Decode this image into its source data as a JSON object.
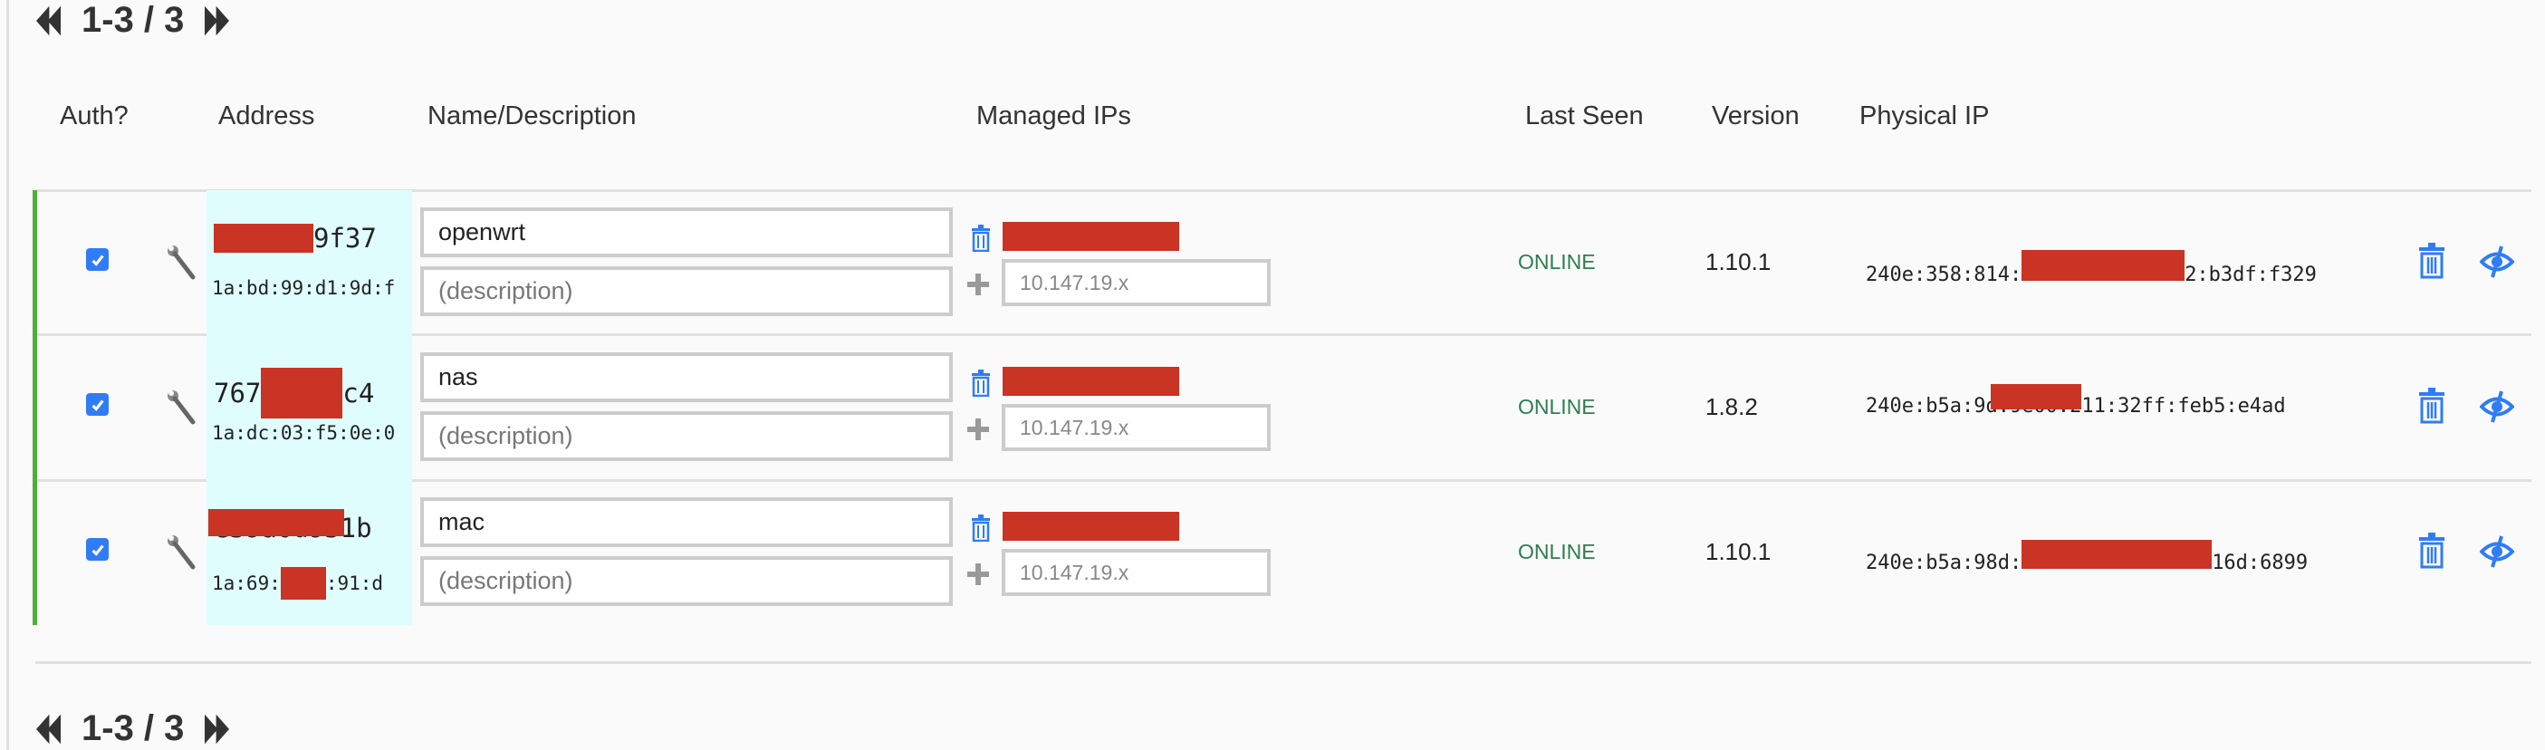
{
  "pager_top": {
    "range": "1-3 / 3"
  },
  "pager_bottom": {
    "range": "1-3 / 3"
  },
  "headers": {
    "auth": "Auth?",
    "address": "Address",
    "name": "Name/Description",
    "managed_ips": "Managed IPs",
    "last_seen": "Last Seen",
    "version": "Version",
    "physical_ip": "Physical IP"
  },
  "colors": {
    "accent": "#2f7cf6",
    "online": "#2e7d4f",
    "auth_bar": "#4caf3a",
    "redaction": "#c93424",
    "address_bg": "#e0fdfd"
  },
  "rows": [
    {
      "authorized": true,
      "addr_pre": "",
      "addr_post": "9f37",
      "mac_pre": "1a:bd:99:d1:9d:f",
      "mac_post": "",
      "name": "openwrt",
      "description_placeholder": "(description)",
      "ip_placeholder": "10.147.19.x",
      "last_seen": "ONLINE",
      "version": "1.10.1",
      "phys_pre": "240e:358:814:",
      "phys_post": "2:b3df:f329"
    },
    {
      "authorized": true,
      "addr_pre": "767",
      "addr_post": "c4",
      "mac_pre": "1a:dc:03:f5:0e:0",
      "mac_post": "",
      "name": "nas",
      "description_placeholder": "(description)",
      "ip_placeholder": "10.147.19.x",
      "last_seen": "ONLINE",
      "version": "1.8.2",
      "phys_pre": "240e:b5a:9",
      "phys_post": "d:9e00:211:32ff:feb5:e4ad"
    },
    {
      "authorized": true,
      "addr_pre": "",
      "addr_post": "e39a0d951b",
      "mac_pre": "1a:69:",
      "mac_post": ":91:d",
      "name": "mac",
      "description_placeholder": "(description)",
      "ip_placeholder": "10.147.19.x",
      "last_seen": "ONLINE",
      "version": "1.10.1",
      "phys_pre": "240e:b5a:98d:",
      "phys_post": "16d:6899"
    }
  ]
}
